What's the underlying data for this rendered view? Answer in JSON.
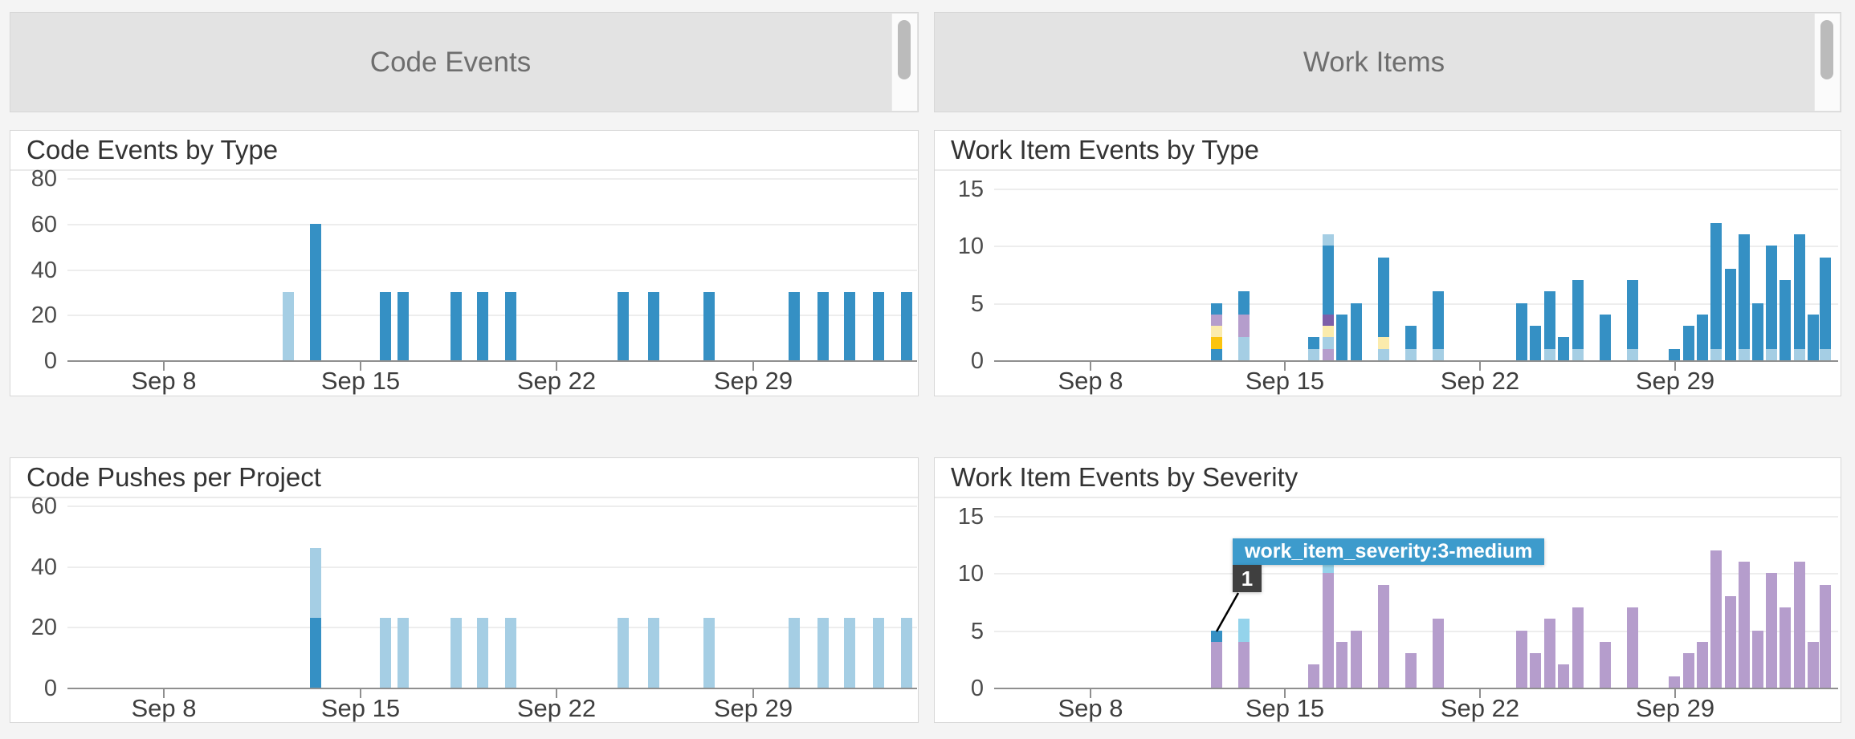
{
  "panel_headers": [
    {
      "title": "Code Events"
    },
    {
      "title": "Work Items"
    }
  ],
  "x_axis": {
    "tick_labels": [
      "Sep 8",
      "Sep 15",
      "Sep 22",
      "Sep 29"
    ],
    "tick_days": [
      0,
      7,
      14,
      21
    ],
    "domain_days": [
      -3.45,
      26.85
    ]
  },
  "colors": {
    "blue": "#3590C4",
    "light_blue": "#A5CEE4",
    "sky_blue": "#94D3EB",
    "lavender": "#B59DCC",
    "dark_purple": "#7D5FA9",
    "gold": "#FBC40F",
    "cream_yellow": "#FBEBAC",
    "tooltip_blue": "#3D9BCC",
    "badge_gray": "#3F3F3F",
    "grid": "#EDEDED",
    "axis": "#8F8F8F"
  },
  "chart_data": [
    {
      "type": "bar",
      "title": "Code Events by Type",
      "ylim": [
        0,
        80
      ],
      "y_ticks": [
        0,
        20,
        40,
        60,
        80
      ],
      "bars": [
        {
          "day": 4.44,
          "segments": [
            [
              "light_blue",
              30
            ]
          ]
        },
        {
          "day": 5.41,
          "segments": [
            [
              "blue",
              60
            ]
          ]
        },
        {
          "day": 7.9,
          "segments": [
            [
              "blue",
              30
            ]
          ]
        },
        {
          "day": 8.52,
          "segments": [
            [
              "blue",
              30
            ]
          ]
        },
        {
          "day": 10.4,
          "segments": [
            [
              "blue",
              30
            ]
          ]
        },
        {
          "day": 11.35,
          "segments": [
            [
              "blue",
              30
            ]
          ]
        },
        {
          "day": 12.37,
          "segments": [
            [
              "blue",
              30
            ]
          ]
        },
        {
          "day": 16.38,
          "segments": [
            [
              "blue",
              30
            ]
          ]
        },
        {
          "day": 17.45,
          "segments": [
            [
              "blue",
              30
            ]
          ]
        },
        {
          "day": 19.43,
          "segments": [
            [
              "blue",
              30
            ]
          ]
        },
        {
          "day": 22.48,
          "segments": [
            [
              "blue",
              30
            ]
          ]
        },
        {
          "day": 23.49,
          "segments": [
            [
              "blue",
              30
            ]
          ]
        },
        {
          "day": 24.45,
          "segments": [
            [
              "blue",
              30
            ]
          ]
        },
        {
          "day": 25.47,
          "segments": [
            [
              "blue",
              30
            ]
          ]
        },
        {
          "day": 26.48,
          "segments": [
            [
              "blue",
              30
            ]
          ]
        }
      ]
    },
    {
      "type": "bar",
      "title": "Work Item Events by Type",
      "ylim": [
        0,
        15
      ],
      "y_ticks": [
        0,
        5,
        10,
        15
      ],
      "bars": [
        {
          "day": 4.53,
          "segments": [
            [
              "blue",
              1
            ],
            [
              "gold",
              1
            ],
            [
              "cream_yellow",
              1
            ],
            [
              "lavender",
              1
            ],
            [
              "blue",
              1
            ]
          ]
        },
        {
          "day": 5.53,
          "segments": [
            [
              "light_blue",
              2
            ],
            [
              "lavender",
              2
            ],
            [
              "blue",
              2
            ]
          ]
        },
        {
          "day": 8.01,
          "segments": [
            [
              "light_blue",
              1
            ],
            [
              "blue",
              1
            ]
          ]
        },
        {
          "day": 8.53,
          "segments": [
            [
              "lavender",
              1
            ],
            [
              "light_blue",
              1
            ],
            [
              "cream_yellow",
              1
            ],
            [
              "dark_purple",
              1
            ],
            [
              "blue",
              6
            ],
            [
              "light_blue",
              1
            ]
          ]
        },
        {
          "day": 9.04,
          "segments": [
            [
              "blue",
              4
            ]
          ]
        },
        {
          "day": 9.54,
          "segments": [
            [
              "blue",
              5
            ]
          ]
        },
        {
          "day": 10.52,
          "segments": [
            [
              "light_blue",
              1
            ],
            [
              "cream_yellow",
              1
            ],
            [
              "blue",
              7
            ]
          ]
        },
        {
          "day": 11.52,
          "segments": [
            [
              "light_blue",
              1
            ],
            [
              "blue",
              2
            ]
          ]
        },
        {
          "day": 12.49,
          "segments": [
            [
              "light_blue",
              1
            ],
            [
              "blue",
              5
            ]
          ]
        },
        {
          "day": 15.49,
          "segments": [
            [
              "blue",
              5
            ]
          ]
        },
        {
          "day": 15.99,
          "segments": [
            [
              "blue",
              3
            ]
          ]
        },
        {
          "day": 16.5,
          "segments": [
            [
              "light_blue",
              1
            ],
            [
              "blue",
              5
            ]
          ]
        },
        {
          "day": 17.0,
          "segments": [
            [
              "blue",
              2
            ]
          ]
        },
        {
          "day": 17.5,
          "segments": [
            [
              "light_blue",
              1
            ],
            [
              "blue",
              6
            ]
          ]
        },
        {
          "day": 18.48,
          "segments": [
            [
              "blue",
              4
            ]
          ]
        },
        {
          "day": 19.48,
          "segments": [
            [
              "light_blue",
              1
            ],
            [
              "blue",
              6
            ]
          ]
        },
        {
          "day": 20.96,
          "segments": [
            [
              "blue",
              1
            ]
          ]
        },
        {
          "day": 21.48,
          "segments": [
            [
              "blue",
              3
            ]
          ]
        },
        {
          "day": 21.98,
          "segments": [
            [
              "blue",
              4
            ]
          ]
        },
        {
          "day": 22.48,
          "segments": [
            [
              "light_blue",
              1
            ],
            [
              "blue",
              11
            ]
          ]
        },
        {
          "day": 22.98,
          "segments": [
            [
              "blue",
              8
            ]
          ]
        },
        {
          "day": 23.47,
          "segments": [
            [
              "light_blue",
              1
            ],
            [
              "blue",
              10
            ]
          ]
        },
        {
          "day": 23.97,
          "segments": [
            [
              "blue",
              5
            ]
          ]
        },
        {
          "day": 24.47,
          "segments": [
            [
              "light_blue",
              1
            ],
            [
              "blue",
              9
            ]
          ]
        },
        {
          "day": 24.96,
          "segments": [
            [
              "blue",
              7
            ]
          ]
        },
        {
          "day": 25.46,
          "segments": [
            [
              "light_blue",
              1
            ],
            [
              "blue",
              10
            ]
          ]
        },
        {
          "day": 25.95,
          "segments": [
            [
              "blue",
              4
            ]
          ]
        },
        {
          "day": 26.38,
          "segments": [
            [
              "light_blue",
              1
            ],
            [
              "blue",
              8
            ]
          ]
        }
      ]
    },
    {
      "type": "bar",
      "title": "Code Pushes per Project",
      "ylim": [
        0,
        60
      ],
      "y_ticks": [
        0,
        20,
        40,
        60
      ],
      "bars": [
        {
          "day": 5.41,
          "segments": [
            [
              "blue",
              23
            ],
            [
              "light_blue",
              23
            ]
          ]
        },
        {
          "day": 7.9,
          "segments": [
            [
              "light_blue",
              23
            ]
          ]
        },
        {
          "day": 8.52,
          "segments": [
            [
              "light_blue",
              23
            ]
          ]
        },
        {
          "day": 10.4,
          "segments": [
            [
              "light_blue",
              23
            ]
          ]
        },
        {
          "day": 11.35,
          "segments": [
            [
              "light_blue",
              23
            ]
          ]
        },
        {
          "day": 12.37,
          "segments": [
            [
              "light_blue",
              23
            ]
          ]
        },
        {
          "day": 16.38,
          "segments": [
            [
              "light_blue",
              23
            ]
          ]
        },
        {
          "day": 17.45,
          "segments": [
            [
              "light_blue",
              23
            ]
          ]
        },
        {
          "day": 19.43,
          "segments": [
            [
              "light_blue",
              23
            ]
          ]
        },
        {
          "day": 22.48,
          "segments": [
            [
              "light_blue",
              23
            ]
          ]
        },
        {
          "day": 23.49,
          "segments": [
            [
              "light_blue",
              23
            ]
          ]
        },
        {
          "day": 24.45,
          "segments": [
            [
              "light_blue",
              23
            ]
          ]
        },
        {
          "day": 25.47,
          "segments": [
            [
              "light_blue",
              23
            ]
          ]
        },
        {
          "day": 26.48,
          "segments": [
            [
              "light_blue",
              23
            ]
          ]
        }
      ]
    },
    {
      "type": "bar",
      "title": "Work Item Events by Severity",
      "ylim": [
        0,
        15
      ],
      "y_ticks": [
        0,
        5,
        10,
        15
      ],
      "tooltip": {
        "label": "work_item_severity:3-medium",
        "count": "1"
      },
      "bars": [
        {
          "day": 4.53,
          "segments": [
            [
              "lavender",
              4
            ],
            [
              "blue",
              1
            ]
          ]
        },
        {
          "day": 5.53,
          "segments": [
            [
              "lavender",
              4
            ],
            [
              "sky_blue",
              2
            ]
          ]
        },
        {
          "day": 8.01,
          "segments": [
            [
              "lavender",
              2
            ]
          ]
        },
        {
          "day": 8.53,
          "segments": [
            [
              "lavender",
              10
            ],
            [
              "sky_blue",
              1
            ]
          ]
        },
        {
          "day": 9.04,
          "segments": [
            [
              "lavender",
              4
            ]
          ]
        },
        {
          "day": 9.54,
          "segments": [
            [
              "lavender",
              5
            ]
          ]
        },
        {
          "day": 10.52,
          "segments": [
            [
              "lavender",
              9
            ]
          ]
        },
        {
          "day": 11.52,
          "segments": [
            [
              "lavender",
              3
            ]
          ]
        },
        {
          "day": 12.49,
          "segments": [
            [
              "lavender",
              6
            ]
          ]
        },
        {
          "day": 15.49,
          "segments": [
            [
              "lavender",
              5
            ]
          ]
        },
        {
          "day": 15.99,
          "segments": [
            [
              "lavender",
              3
            ]
          ]
        },
        {
          "day": 16.5,
          "segments": [
            [
              "lavender",
              6
            ]
          ]
        },
        {
          "day": 17.0,
          "segments": [
            [
              "lavender",
              2
            ]
          ]
        },
        {
          "day": 17.5,
          "segments": [
            [
              "lavender",
              7
            ]
          ]
        },
        {
          "day": 18.48,
          "segments": [
            [
              "lavender",
              4
            ]
          ]
        },
        {
          "day": 19.48,
          "segments": [
            [
              "lavender",
              7
            ]
          ]
        },
        {
          "day": 20.96,
          "segments": [
            [
              "lavender",
              1
            ]
          ]
        },
        {
          "day": 21.48,
          "segments": [
            [
              "lavender",
              3
            ]
          ]
        },
        {
          "day": 21.98,
          "segments": [
            [
              "lavender",
              4
            ]
          ]
        },
        {
          "day": 22.48,
          "segments": [
            [
              "lavender",
              12
            ]
          ]
        },
        {
          "day": 22.98,
          "segments": [
            [
              "lavender",
              8
            ]
          ]
        },
        {
          "day": 23.47,
          "segments": [
            [
              "lavender",
              11
            ]
          ]
        },
        {
          "day": 23.97,
          "segments": [
            [
              "lavender",
              5
            ]
          ]
        },
        {
          "day": 24.47,
          "segments": [
            [
              "lavender",
              10
            ]
          ]
        },
        {
          "day": 24.96,
          "segments": [
            [
              "lavender",
              7
            ]
          ]
        },
        {
          "day": 25.46,
          "segments": [
            [
              "lavender",
              11
            ]
          ]
        },
        {
          "day": 25.95,
          "segments": [
            [
              "lavender",
              4
            ]
          ]
        },
        {
          "day": 26.38,
          "segments": [
            [
              "lavender",
              9
            ]
          ]
        }
      ]
    }
  ]
}
